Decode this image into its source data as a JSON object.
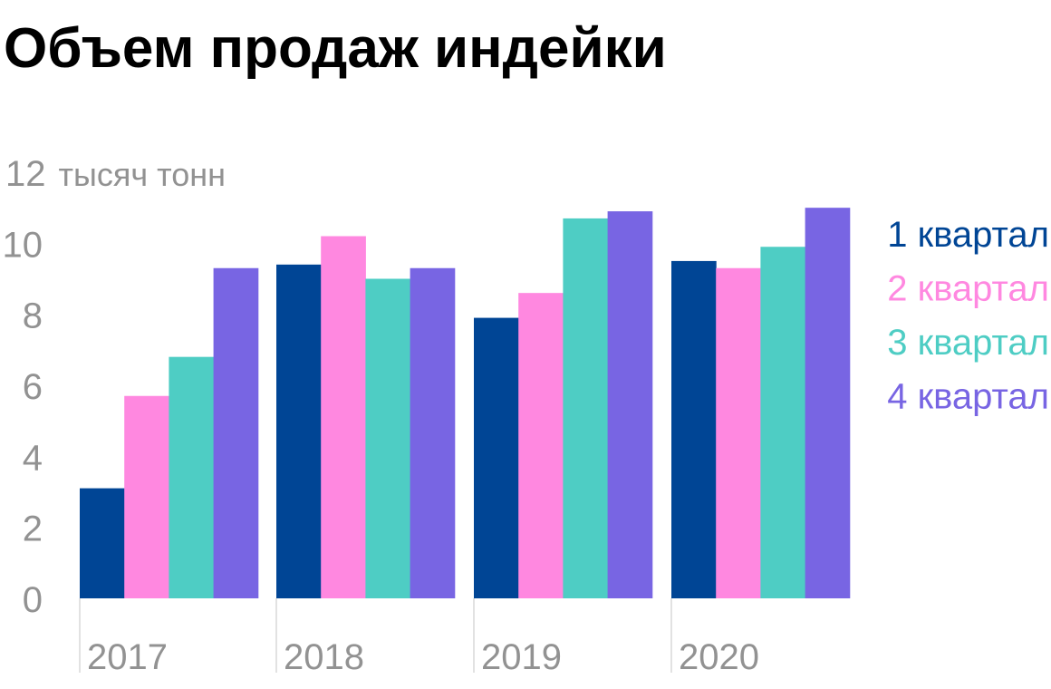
{
  "chart_data": {
    "type": "bar",
    "title": "Объем продаж индейки",
    "ylabel": "тысяч тонн",
    "ylim": [
      0,
      12
    ],
    "yticks": [
      0,
      2,
      4,
      6,
      8,
      10,
      12
    ],
    "categories": [
      "2017",
      "2018",
      "2019",
      "2020"
    ],
    "series": [
      {
        "name": "1 квартал",
        "color": "#004595",
        "values": [
          3.1,
          9.4,
          7.9,
          9.5
        ]
      },
      {
        "name": "2 квартал",
        "color": "#ff88e0",
        "values": [
          5.7,
          10.2,
          8.6,
          9.3
        ]
      },
      {
        "name": "3 квартал",
        "color": "#4ecdc4",
        "values": [
          6.8,
          9.0,
          10.7,
          9.9
        ]
      },
      {
        "name": "4 квартал",
        "color": "#7865e3",
        "values": [
          9.3,
          9.3,
          10.9,
          11.0
        ]
      }
    ],
    "legend_position": "right",
    "grid": false
  },
  "colors": {
    "title": "#929292",
    "axis_text": "#929292",
    "separator": "#d8d8d8"
  }
}
